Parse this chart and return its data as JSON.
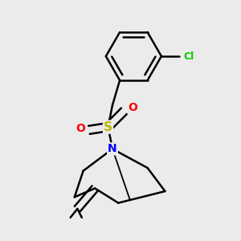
{
  "background_color": "#ebebeb",
  "atom_colors": {
    "C": "#000000",
    "N": "#0000ff",
    "S": "#b8b800",
    "O": "#ff0000",
    "Cl": "#00cc00"
  },
  "bond_color": "#000000",
  "bond_width": 1.8,
  "figsize": [
    3.0,
    3.0
  ],
  "dpi": 100
}
